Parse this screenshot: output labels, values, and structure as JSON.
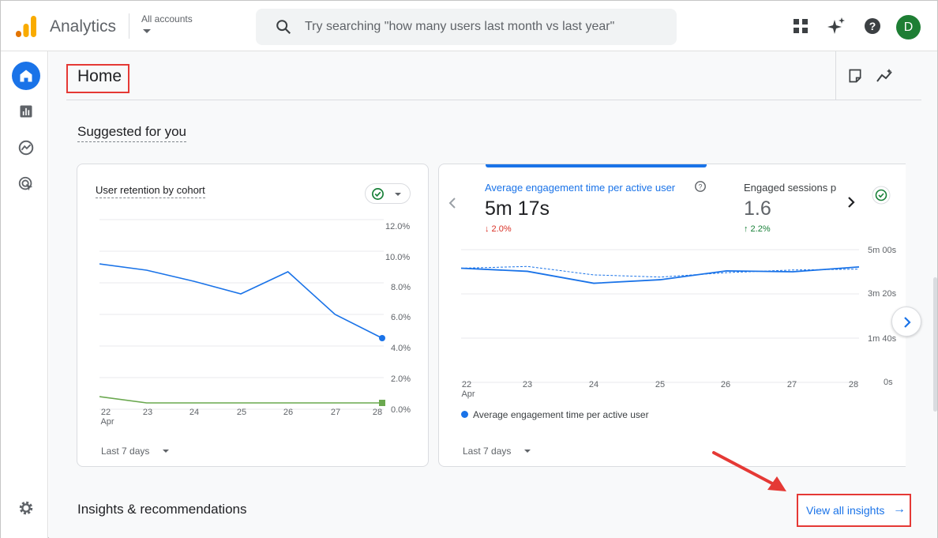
{
  "app": {
    "name": "Analytics",
    "accounts_label": "All accounts"
  },
  "search": {
    "placeholder": "Try searching \"how many users last month vs last year\""
  },
  "topbar": {
    "icons": [
      "apps-grid-icon",
      "sparkle-icon",
      "help-icon"
    ],
    "avatar_initial": "D"
  },
  "nav": {
    "items": [
      "home-icon",
      "reports-icon",
      "explore-icon",
      "advertising-icon"
    ],
    "settings_icon": "gear-icon"
  },
  "page": {
    "title": "Home",
    "header_icons": [
      "notes-icon",
      "insights-trend-icon"
    ]
  },
  "suggested": {
    "title": "Suggested for you"
  },
  "retention_card": {
    "title": "User retention by cohort",
    "range_label": "Last 7 days",
    "y_ticks": [
      "12.0%",
      "10.0%",
      "8.0%",
      "6.0%",
      "4.0%",
      "2.0%",
      "0.0%"
    ],
    "x_ticks": [
      "22",
      "23",
      "24",
      "25",
      "26",
      "27",
      "28"
    ],
    "x_sub": "Apr"
  },
  "engagement_card": {
    "metric1_label": "Average engagement time per active user",
    "metric1_value": "5m 17s",
    "metric1_delta": "↓ 2.0%",
    "metric2_label": "Engaged sessions p",
    "metric2_value": "1.6",
    "metric2_delta": "↑ 2.2%",
    "y_ticks": [
      "5m 00s",
      "3m 20s",
      "1m 40s",
      "0s"
    ],
    "x_ticks": [
      "22",
      "23",
      "24",
      "25",
      "26",
      "27",
      "28"
    ],
    "x_sub": "Apr",
    "legend": "Average engagement time per active user",
    "range_label": "Last 7 days"
  },
  "insights": {
    "title": "Insights & recommendations",
    "view_all": "View all insights",
    "arrow": "→"
  },
  "colors": {
    "accent": "#1a73e8",
    "green": "#34a853",
    "red": "#d93025",
    "retention_green": "#6aa84f"
  },
  "chart_data": [
    {
      "type": "line",
      "title": "User retention by cohort",
      "x": [
        "22 Apr",
        "23",
        "24",
        "25",
        "26",
        "27",
        "28"
      ],
      "ylim": [
        0,
        12
      ],
      "series": [
        {
          "values": [
            9.2,
            8.8,
            8.1,
            7.3,
            8.7,
            6.0,
            4.5
          ]
        },
        {
          "values": [
            0.8,
            0.4,
            0.4,
            0.4,
            0.4,
            0.4,
            0.4
          ]
        }
      ]
    },
    {
      "type": "line",
      "title": "Average engagement time per active user",
      "x": [
        "22 Apr",
        "23",
        "24",
        "25",
        "26",
        "27",
        "28"
      ],
      "ylim_seconds": [
        0,
        300
      ],
      "series": [
        {
          "name": "Average engagement time per active user",
          "values_seconds": [
            258,
            251,
            224,
            232,
            252,
            250,
            261
          ]
        },
        {
          "values_seconds": [
            258,
            262,
            243,
            238,
            248,
            254,
            256
          ]
        }
      ]
    }
  ]
}
